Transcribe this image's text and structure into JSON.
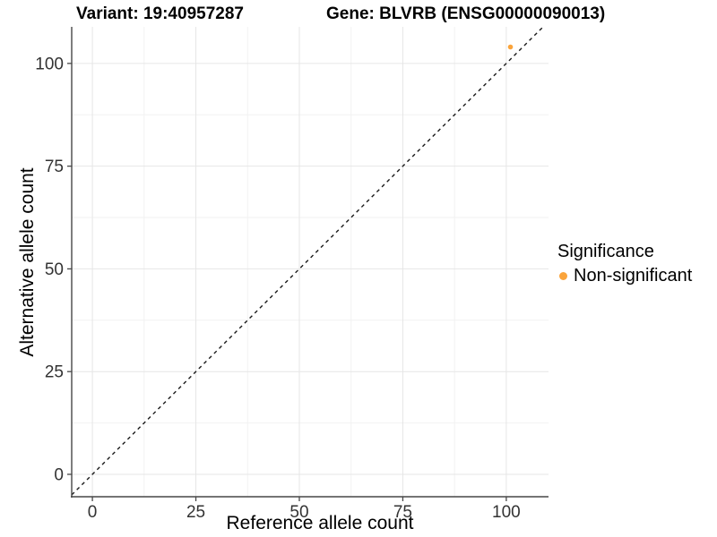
{
  "figure": {
    "title_left": "Variant: 19:40957287",
    "title_right": "Gene: BLVRB (ENSG00000090013)"
  },
  "legend": {
    "title": "Significance",
    "items": [
      {
        "label": "Non-significant",
        "color": "#FAA43C",
        "marker": "circle"
      }
    ]
  },
  "chart_data": {
    "type": "scatter",
    "title": "Variant: 19:40957287 / Gene: BLVRB (ENSG00000090013)",
    "xlabel": "Reference allele count",
    "ylabel": "Alternative allele count",
    "xlim": [
      -5.0,
      110.2
    ],
    "ylim": [
      -5.45,
      108.9
    ],
    "x_ticks": [
      0,
      25,
      50,
      75,
      100
    ],
    "y_ticks": [
      0,
      25,
      50,
      75,
      100
    ],
    "x_minor": [
      12.5,
      37.5,
      62.5,
      87.5
    ],
    "y_minor": [
      12.5,
      37.5,
      62.5,
      87.5
    ],
    "grid": true,
    "legend_position": "right",
    "series": [
      {
        "name": "Non-significant",
        "color": "#FAA43C",
        "marker_radius_px": 2.8,
        "points": [
          {
            "x": 101,
            "y": 104
          }
        ]
      }
    ],
    "reference_line": {
      "type": "identity",
      "slope": 1,
      "intercept": 0,
      "style": "dashed",
      "color": "#1a1a1a"
    }
  },
  "style": {
    "grid_major_color": "#E6E6E6",
    "grid_minor_color": "#F2F2F2",
    "axis_color": "#474747",
    "tick_label_color": "#333333"
  }
}
